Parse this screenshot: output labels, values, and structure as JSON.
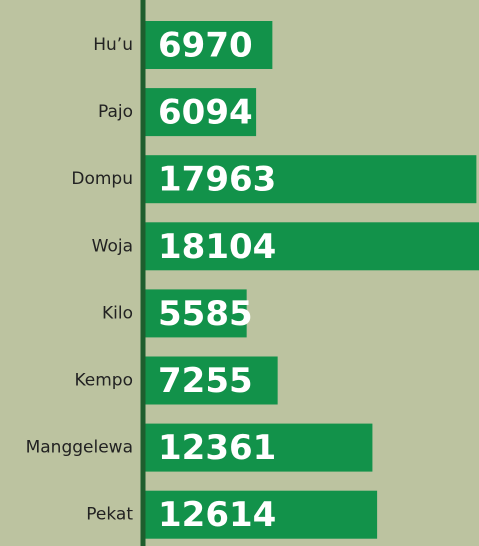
{
  "chart_data": {
    "type": "barh",
    "categories": [
      "Hu’u",
      "Pajo",
      "Dompu",
      "Woja",
      "Kilo",
      "Kempo",
      "Manggelewa",
      "Pekat"
    ],
    "values": [
      6970,
      6094,
      17963,
      18104,
      5585,
      7255,
      12361,
      12614
    ],
    "color": "#12924a",
    "xlim": [
      0,
      18104
    ]
  }
}
